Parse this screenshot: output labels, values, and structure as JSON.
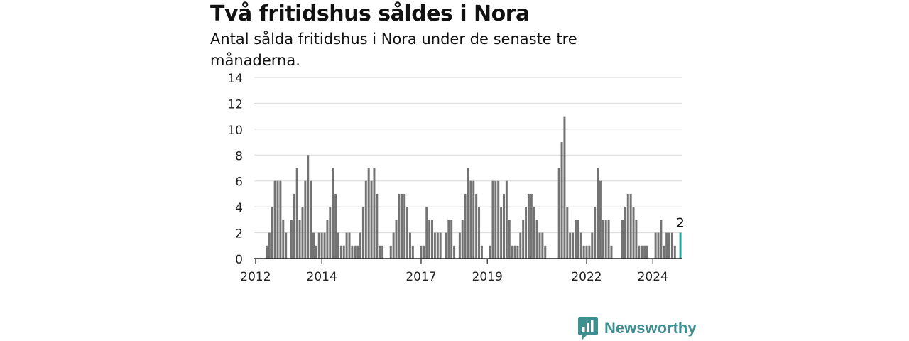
{
  "header": {
    "title": "Två fritidshus såldes i Nora",
    "subtitle": "Antal sålda fritidshus i Nora under de senaste tre månaderna."
  },
  "brand": {
    "name": "Newsworthy",
    "icon": "bar-chart-icon",
    "color": "#3e8f8f"
  },
  "colors": {
    "bar": "#737373",
    "highlight": "#1fa39a",
    "grid": "#d9d9d9",
    "axis": "#222222"
  },
  "chart_data": {
    "type": "bar",
    "title": "Två fritidshus såldes i Nora",
    "subtitle": "Antal sålda fritidshus i Nora under de senaste tre månaderna.",
    "xlabel": "",
    "ylabel": "",
    "ylim": [
      0,
      14
    ],
    "yticks": [
      0,
      2,
      4,
      6,
      8,
      10,
      12,
      14
    ],
    "xticks": [
      {
        "label": "2012",
        "month": 0
      },
      {
        "label": "2014",
        "month": 24
      },
      {
        "label": "2017",
        "month": 60
      },
      {
        "label": "2019",
        "month": 84
      },
      {
        "label": "2022",
        "month": 120
      },
      {
        "label": "2024",
        "month": 144
      }
    ],
    "grid": true,
    "series_start": "2012-01",
    "frequency": "monthly",
    "values": [
      0,
      0,
      0,
      0,
      1,
      2,
      4,
      6,
      6,
      6,
      3,
      2,
      0,
      3,
      5,
      7,
      3,
      4,
      6,
      8,
      6,
      2,
      1,
      2,
      2,
      2,
      3,
      4,
      7,
      5,
      2,
      1,
      1,
      2,
      2,
      1,
      1,
      1,
      2,
      4,
      6,
      7,
      6,
      7,
      5,
      1,
      1,
      0,
      0,
      1,
      2,
      3,
      5,
      5,
      5,
      4,
      2,
      1,
      0,
      0,
      1,
      1,
      4,
      3,
      3,
      2,
      2,
      2,
      0,
      2,
      3,
      3,
      1,
      0,
      2,
      3,
      5,
      7,
      6,
      6,
      5,
      4,
      1,
      0,
      0,
      1,
      6,
      6,
      6,
      4,
      5,
      6,
      3,
      1,
      1,
      1,
      2,
      3,
      4,
      5,
      5,
      4,
      3,
      2,
      2,
      1,
      0,
      0,
      0,
      0,
      7,
      9,
      11,
      4,
      2,
      2,
      3,
      3,
      2,
      1,
      1,
      1,
      2,
      4,
      7,
      6,
      3,
      3,
      3,
      1,
      0,
      0,
      0,
      3,
      4,
      5,
      5,
      4,
      3,
      1,
      1,
      1,
      1,
      0,
      0,
      2,
      2,
      3,
      1,
      2,
      2,
      2,
      1,
      0,
      2
    ],
    "highlight_last": true,
    "annotation": "2"
  }
}
